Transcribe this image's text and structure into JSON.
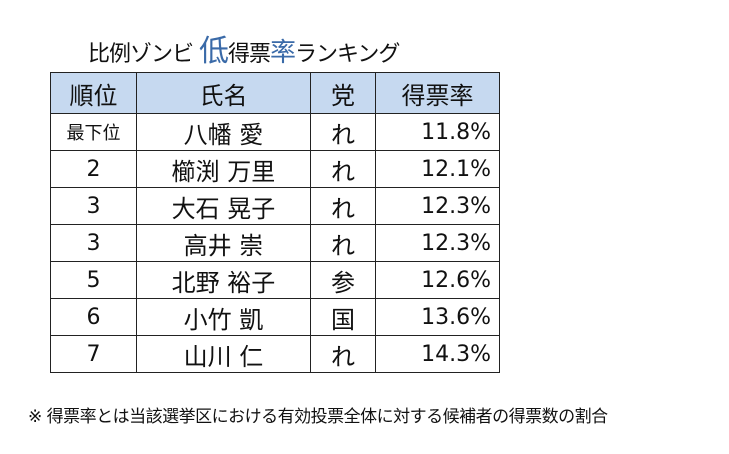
{
  "title": {
    "prefix": "比例ゾンビ ",
    "low": "低",
    "mid1": "得票",
    "rate": "率",
    "suffix": "ランキング"
  },
  "headers": [
    "順位",
    "氏名",
    "党",
    "得票率"
  ],
  "rows": [
    {
      "rank": "最下位",
      "name": "八幡 愛",
      "party": "れ",
      "rate": "11.8%"
    },
    {
      "rank": "2",
      "name": "櫛渕 万里",
      "party": "れ",
      "rate": "12.1%"
    },
    {
      "rank": "3",
      "name": "大石 晃子",
      "party": "れ",
      "rate": "12.3%"
    },
    {
      "rank": "3",
      "name": "高井 崇",
      "party": "れ",
      "rate": "12.3%"
    },
    {
      "rank": "5",
      "name": "北野 裕子",
      "party": "参",
      "rate": "12.6%"
    },
    {
      "rank": "6",
      "name": "小竹 凱",
      "party": "国",
      "rate": "13.6%"
    },
    {
      "rank": "7",
      "name": "山川 仁",
      "party": "れ",
      "rate": "14.3%"
    }
  ],
  "note": "※ 得票率とは当該選挙区における有効投票全体に対する候補者の得票数の割合"
}
